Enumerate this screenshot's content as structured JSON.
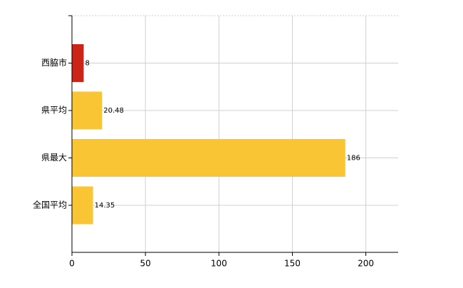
{
  "chart_data": {
    "type": "barh",
    "categories": [
      "西脇市",
      "県平均",
      "県最大",
      "全国平均"
    ],
    "values": [
      8,
      20.48,
      186,
      14.35
    ],
    "colors": [
      "#cc2418",
      "#f9c535",
      "#f9c535",
      "#f9c535"
    ],
    "xlim": [
      0,
      222
    ],
    "xticks": [
      0,
      50,
      100,
      150,
      200
    ],
    "grid": true
  }
}
